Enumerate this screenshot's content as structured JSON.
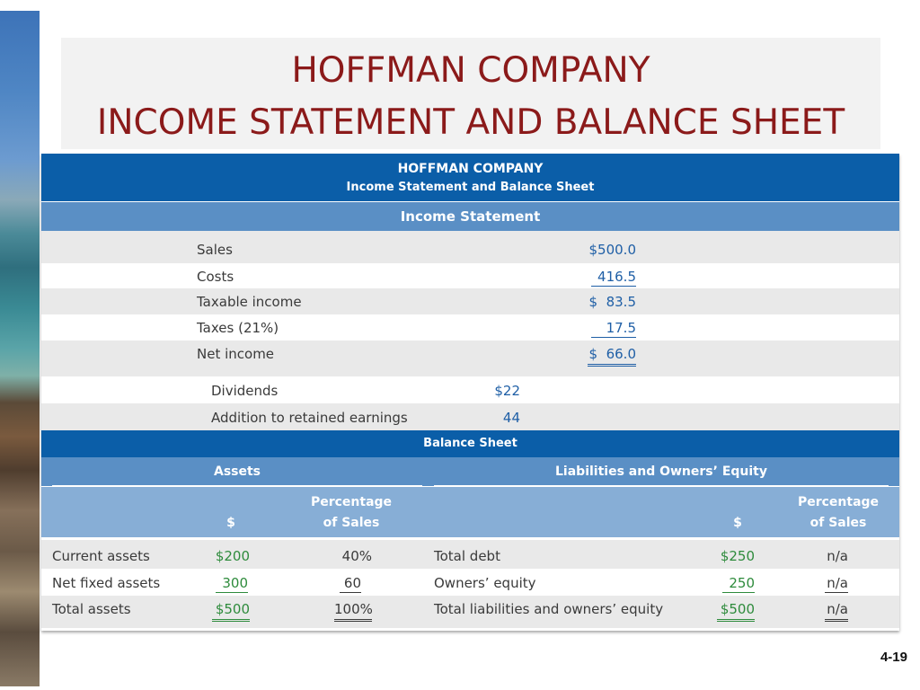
{
  "slide": {
    "title_line1": "HOFFMAN COMPANY",
    "title_line2": "INCOME STATEMENT AND BALANCE SHEET",
    "page_number": "4-19"
  },
  "table": {
    "company": "HOFFMAN COMPANY",
    "subtitle": "Income Statement and Balance Sheet",
    "income_header": "Income Statement",
    "income_rows": [
      {
        "label": "Sales",
        "value": "$500.0"
      },
      {
        "label": "Costs",
        "value": "416.5"
      },
      {
        "label": "Taxable income",
        "value": "$  83.5"
      },
      {
        "label": "Taxes (21%)",
        "value": "17.5"
      },
      {
        "label": "Net income",
        "value": "$  66.0"
      }
    ],
    "dividend_rows": [
      {
        "label": "Dividends",
        "value": "$22"
      },
      {
        "label": "Addition to retained earnings",
        "value": "44"
      }
    ],
    "balance_header": "Balance Sheet",
    "assets_header": "Assets",
    "liabilities_header": "Liabilities and Owners’ Equity",
    "col_dollar": "$",
    "col_pct_line1": "Percentage",
    "col_pct_line2": "of Sales",
    "asset_rows": [
      {
        "label": "Current assets",
        "value": "$200",
        "pct": "40%"
      },
      {
        "label": "Net fixed assets",
        "value": "300",
        "pct": "60"
      },
      {
        "label": "Total assets",
        "value": "$500",
        "pct": "100%"
      }
    ],
    "liability_rows": [
      {
        "label": "Total debt",
        "value": "$250",
        "pct": "n/a"
      },
      {
        "label": "Owners’ equity",
        "value": "250",
        "pct": "n/a"
      },
      {
        "label": "Total liabilities and owners’ equity",
        "value": "$500",
        "pct": "n/a"
      }
    ]
  },
  "colors": {
    "title": "#8b1a1a",
    "header_dark": "#0b5ea8",
    "header_mid": "#5a8fc5",
    "header_light": "#87aed6",
    "value_blue": "#1f5fa6",
    "value_green": "#2e8b3c"
  }
}
